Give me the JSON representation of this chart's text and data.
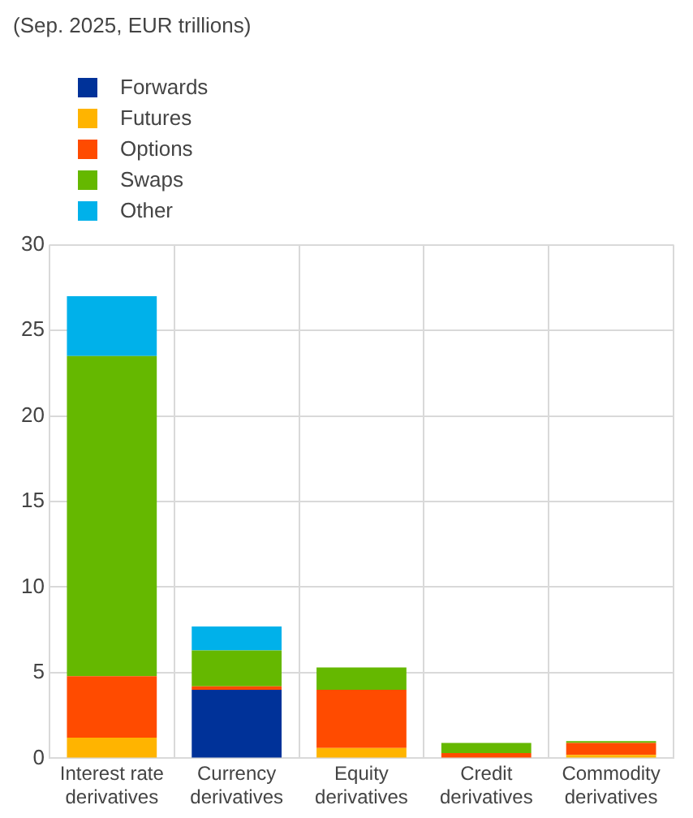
{
  "chart_data": {
    "type": "bar",
    "subtitle": "(Sep. 2025, EUR trillions)",
    "stacked": true,
    "categories": [
      "Interest rate derivatives",
      "Currency derivatives",
      "Equity derivatives",
      "Credit derivatives",
      "Commodity derivatives"
    ],
    "series": [
      {
        "name": "Forwards",
        "color": "#003299",
        "values": [
          0,
          4.0,
          0,
          0,
          0
        ]
      },
      {
        "name": "Futures",
        "color": "#ffb400",
        "values": [
          1.2,
          0,
          0.6,
          0,
          0.2
        ]
      },
      {
        "name": "Options",
        "color": "#ff4b00",
        "values": [
          3.6,
          0.2,
          3.4,
          0.3,
          0.7
        ]
      },
      {
        "name": "Swaps",
        "color": "#65b800",
        "values": [
          18.7,
          2.1,
          1.3,
          0.6,
          0.1
        ]
      },
      {
        "name": "Other",
        "color": "#00b1ea",
        "values": [
          3.5,
          1.4,
          0,
          0,
          0
        ]
      }
    ],
    "ylim": [
      0,
      30
    ],
    "yticks": [
      0,
      5,
      10,
      15,
      20,
      25,
      30
    ],
    "grid": true,
    "legend": "top left"
  }
}
